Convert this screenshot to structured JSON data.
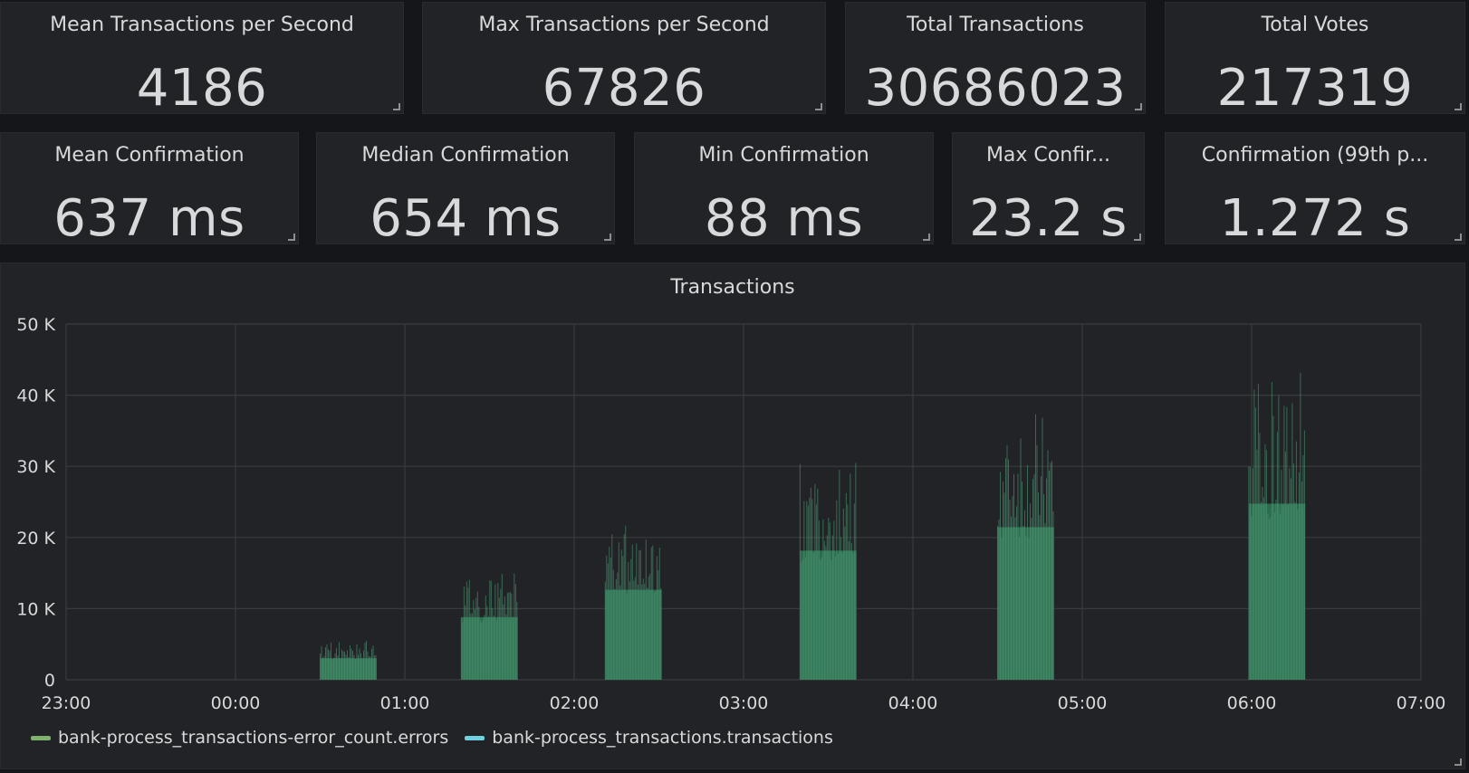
{
  "stats_row1": [
    {
      "title": "Mean Transactions per Second",
      "value": "4186"
    },
    {
      "title": "Max Transactions per Second",
      "value": "67826"
    },
    {
      "title": "Total Transactions",
      "value": "30686023"
    },
    {
      "title": "Total Votes",
      "value": "217319"
    }
  ],
  "stats_row2": [
    {
      "title": "Mean Confirmation",
      "value": "637 ms"
    },
    {
      "title": "Median Confirmation",
      "value": "654 ms"
    },
    {
      "title": "Min Confirmation",
      "value": "88 ms"
    },
    {
      "title": "Max Confir...",
      "value": "23.2 s"
    },
    {
      "title": "Confirmation (99th p...",
      "value": "1.272 s"
    }
  ],
  "chart_data": {
    "type": "bar",
    "title": "Transactions",
    "xlabel": "",
    "ylabel": "",
    "x_ticks": [
      "23:00",
      "00:00",
      "01:00",
      "02:00",
      "03:00",
      "04:00",
      "05:00",
      "06:00",
      "07:00"
    ],
    "y_ticks": [
      "0",
      "10 K",
      "20 K",
      "30 K",
      "40 K",
      "50 K"
    ],
    "xlim": [
      "23:00",
      "07:00"
    ],
    "ylim": [
      0,
      50000
    ],
    "grid": true,
    "legend_position": "bottom-left",
    "series": [
      {
        "name": "bank-process_transactions-error_count.errors",
        "color": "#7eb26d",
        "bursts": []
      },
      {
        "name": "bank-process_transactions.transactions",
        "color": "#6ed0e0",
        "bursts": [
          {
            "start": "00:30",
            "end": "00:50",
            "peak": 5500
          },
          {
            "start": "01:20",
            "end": "01:40",
            "peak": 16000
          },
          {
            "start": "02:11",
            "end": "02:31",
            "peak": 23000
          },
          {
            "start": "03:20",
            "end": "03:40",
            "peak": 33000
          },
          {
            "start": "04:30",
            "end": "04:50",
            "peak": 39000
          },
          {
            "start": "05:59",
            "end": "06:19",
            "peak": 45000
          }
        ]
      }
    ]
  },
  "colors": {
    "background": "#141619",
    "panel": "#222326",
    "text": "#d8d9da",
    "grid": "#3a3b3e",
    "bar_fill": "#2f6b4f",
    "bar_stroke": "#4fa37a"
  }
}
